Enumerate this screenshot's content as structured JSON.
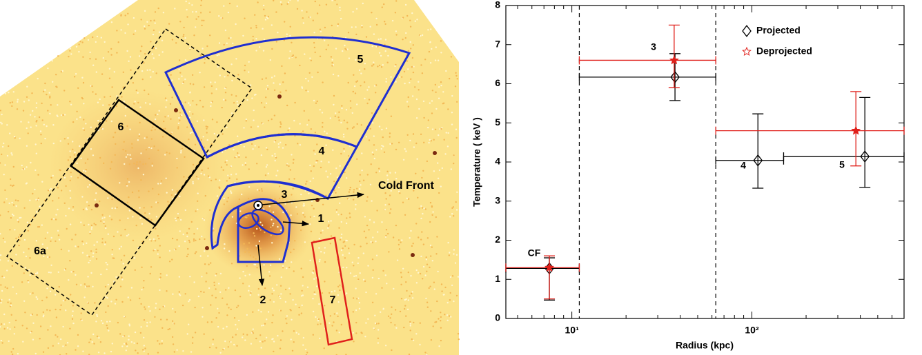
{
  "image": {
    "labels": [
      "6",
      "6a",
      "5",
      "4",
      "3",
      "1",
      "2",
      "7",
      "Cold Front"
    ]
  },
  "chart_data": {
    "type": "scatter",
    "xlabel": "Radius (kpc)",
    "ylabel": "Temperature ( keV )",
    "xscale": "log",
    "xlim": [
      4.3,
      700
    ],
    "ylim": [
      0,
      8
    ],
    "xticks": [
      {
        "value": 10,
        "label": "10¹"
      },
      {
        "value": 100,
        "label": "10²"
      }
    ],
    "yticks": [
      0,
      1,
      2,
      3,
      4,
      5,
      6,
      7,
      8
    ],
    "vlines": [
      11,
      63
    ],
    "legend": "upper right",
    "annotations": [
      "CF",
      "3",
      "4",
      "5"
    ],
    "series": [
      {
        "name": "Projected",
        "color": "#000000",
        "marker": "diamond",
        "x": [
          7.5,
          37.4,
          108,
          424
        ],
        "values": [
          1.28,
          6.17,
          4.04,
          4.14
        ],
        "x_low": [
          4.3,
          11,
          63,
          150
        ],
        "x_high": [
          11,
          63,
          150,
          700
        ],
        "y_low": [
          0.47,
          5.57,
          3.33,
          3.35
        ],
        "y_high": [
          1.55,
          6.77,
          5.23,
          5.65
        ]
      },
      {
        "name": "Deprojected",
        "color": "#e0201b",
        "marker": "star",
        "x": [
          7.5,
          37,
          378
        ],
        "values": [
          1.3,
          6.6,
          4.8
        ],
        "x_low": [
          4.3,
          11,
          63
        ],
        "x_high": [
          11,
          63,
          700
        ],
        "y_low": [
          0.5,
          5.9,
          3.9
        ],
        "y_high": [
          1.6,
          7.5,
          5.8
        ]
      }
    ]
  }
}
